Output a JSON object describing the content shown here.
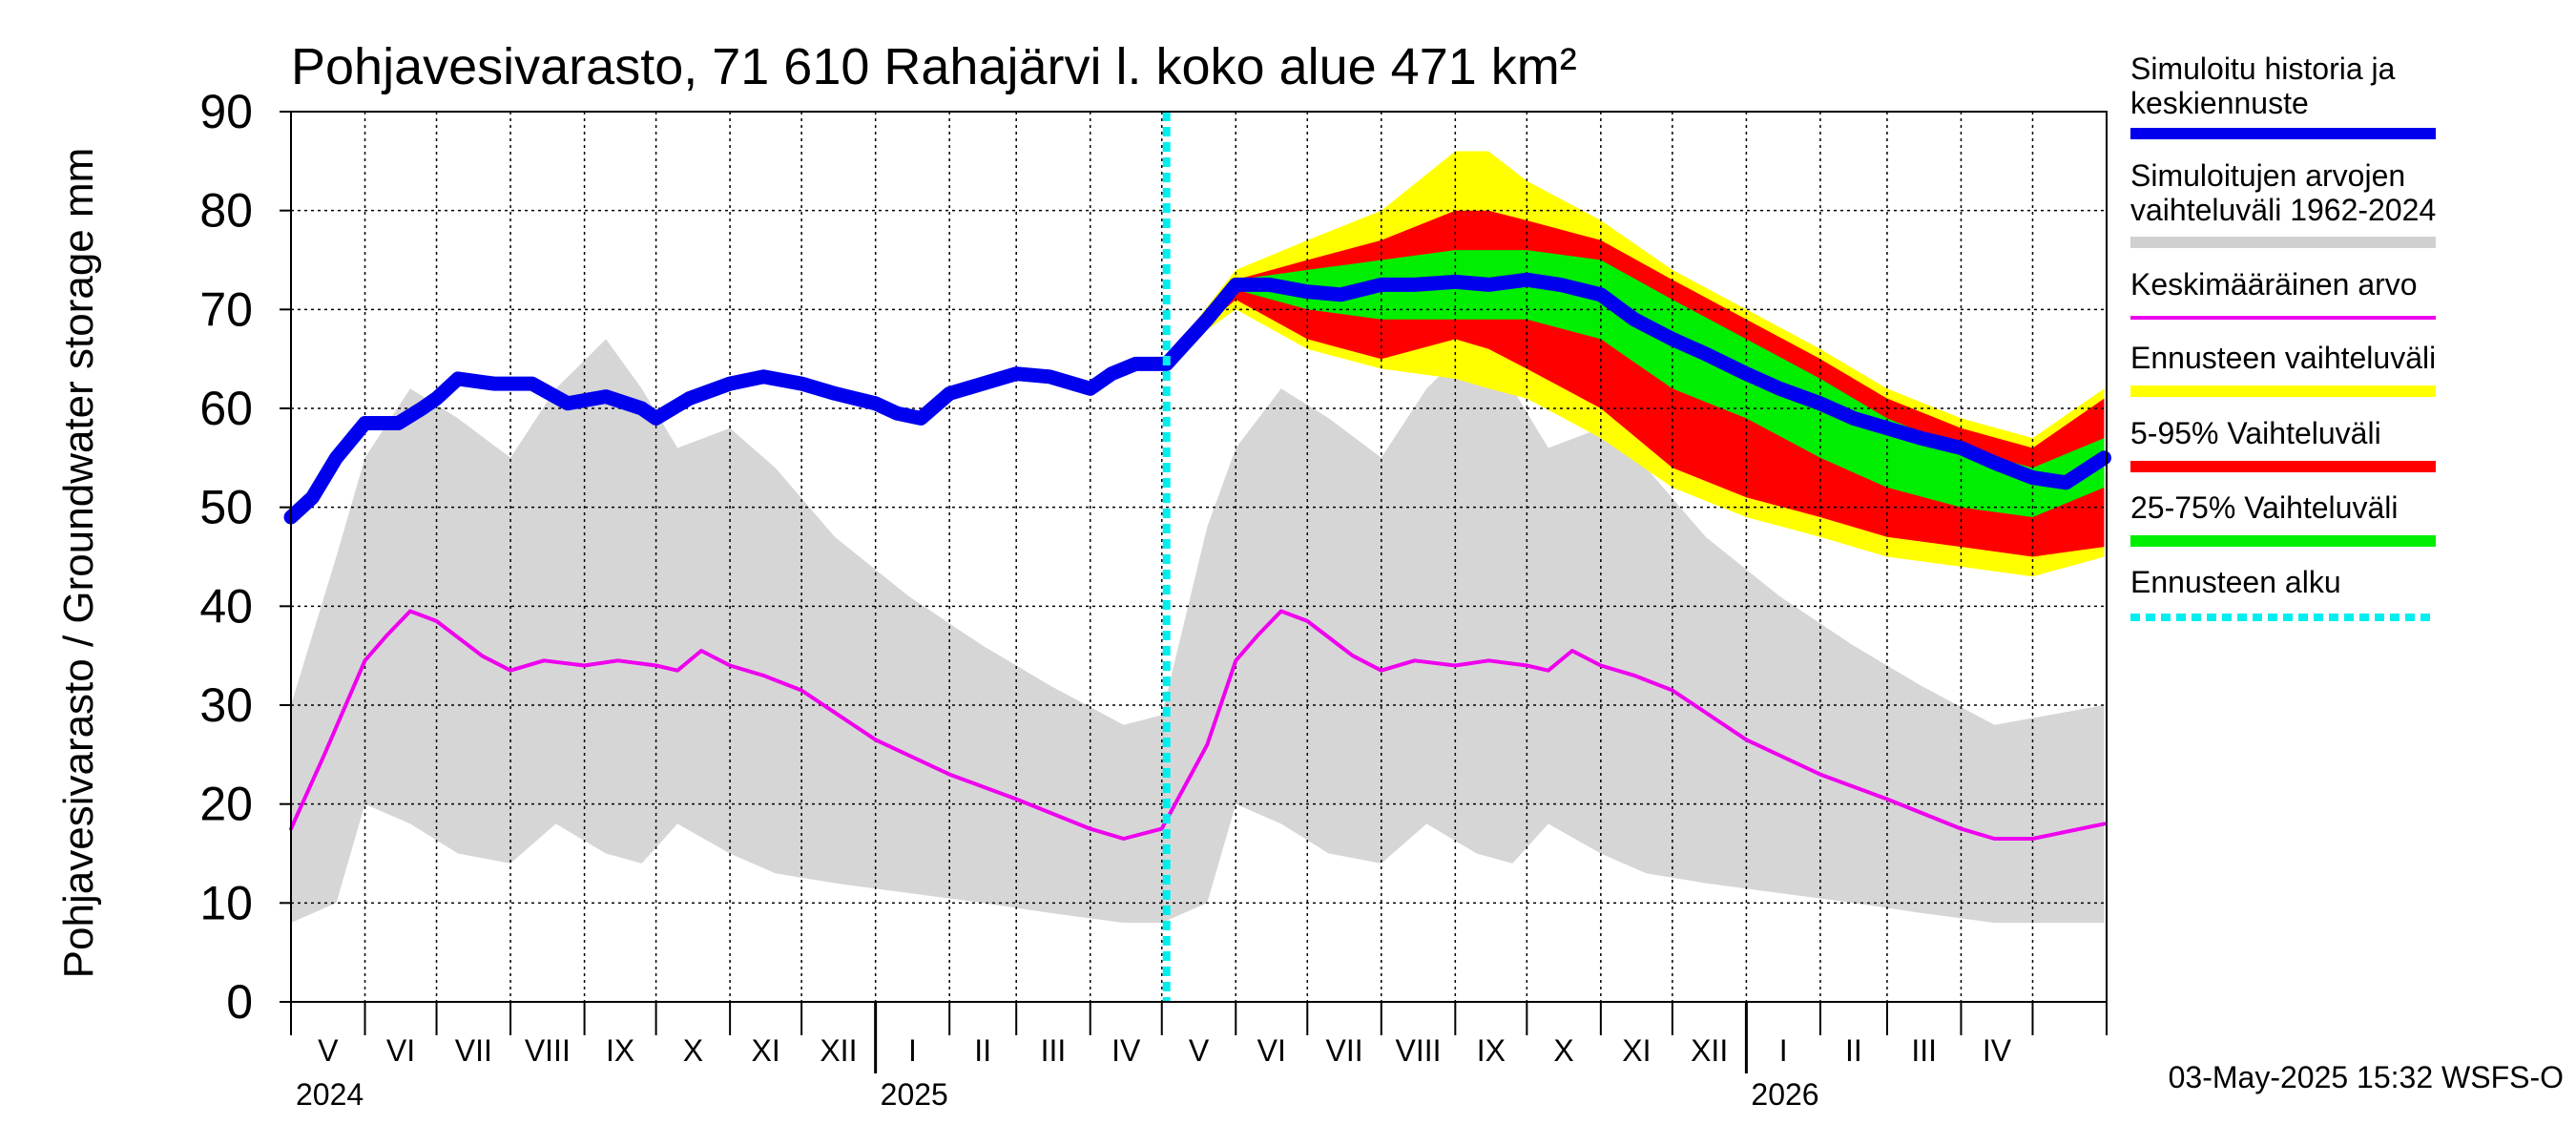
{
  "chart_data": {
    "type": "area",
    "title": "Pohjavesivarasto, 71 610 Rahajärvi l. koko alue 471 km²",
    "ylabel": "Pohjavesivarasto / Groundwater storage   mm",
    "ylim": [
      0,
      90
    ],
    "yticks": [
      0,
      10,
      20,
      30,
      40,
      50,
      60,
      70,
      80,
      90
    ],
    "grid": true,
    "x_start": "2024-05-01",
    "x_end": "2026-05-31",
    "forecast_start": "2025-05-03",
    "months": [
      "V",
      "VI",
      "VII",
      "VIII",
      "IX",
      "X",
      "XI",
      "XII",
      "I",
      "II",
      "III",
      "IV",
      "V",
      "VI",
      "VII",
      "VIII",
      "IX",
      "X",
      "XI",
      "XII",
      "I",
      "II",
      "III",
      "IV"
    ],
    "years": [
      "2024",
      "2025",
      "2026"
    ],
    "legend": [
      {
        "label": "Simuloitu historia ja keskiennuste",
        "color": "#0000ee",
        "style": "thick"
      },
      {
        "label": "Simuloitujen arvojen vaihteluväli 1962-2024",
        "color": "#d0d0d0",
        "style": "thick"
      },
      {
        "label": "Keskimääräinen arvo",
        "color": "#ee00ee",
        "style": "thin"
      },
      {
        "label": "Ennusteen vaihteluväli",
        "color": "#ffff00",
        "style": "thick"
      },
      {
        "label": "5-95% Vaihteluväli",
        "color": "#ff0000",
        "style": "thick"
      },
      {
        "label": "25-75% Vaihteluväli",
        "color": "#00ee00",
        "style": "thick"
      },
      {
        "label": "Ennusteen alku",
        "color": "#00eeee",
        "style": "dashed"
      }
    ],
    "series": [
      {
        "name": "Simuloitu historia ja keskiennuste",
        "x": [
          "2024-05-01",
          "2024-05-10",
          "2024-05-20",
          "2024-06-01",
          "2024-06-15",
          "2024-06-25",
          "2024-07-01",
          "2024-07-10",
          "2024-07-25",
          "2024-08-10",
          "2024-08-25",
          "2024-09-10",
          "2024-09-25",
          "2024-10-01",
          "2024-10-15",
          "2024-11-01",
          "2024-11-15",
          "2024-12-01",
          "2024-12-15",
          "2025-01-01",
          "2025-01-10",
          "2025-01-20",
          "2025-02-01",
          "2025-02-15",
          "2025-03-01",
          "2025-03-15",
          "2025-04-01",
          "2025-04-10",
          "2025-04-20",
          "2025-05-03",
          "2025-05-20",
          "2025-06-01",
          "2025-06-15",
          "2025-07-01",
          "2025-07-15",
          "2025-08-01",
          "2025-08-15",
          "2025-09-01",
          "2025-09-15",
          "2025-10-01",
          "2025-10-15",
          "2025-11-01",
          "2025-11-15",
          "2025-12-01",
          "2025-12-15",
          "2026-01-01",
          "2026-01-15",
          "2026-02-01",
          "2026-02-15",
          "2026-03-01",
          "2026-03-15",
          "2026-04-01",
          "2026-04-15",
          "2026-05-01",
          "2026-05-15",
          "2026-05-31"
        ],
        "values": [
          49,
          51,
          55,
          58.5,
          58.5,
          60,
          61,
          63,
          62.5,
          62.5,
          60.5,
          61.2,
          60,
          59,
          61,
          62.5,
          63.2,
          62.5,
          61.5,
          60.5,
          59.5,
          59,
          61.5,
          62.5,
          63.5,
          63.2,
          62,
          63.5,
          64.5,
          64.5,
          69,
          72.5,
          72.5,
          71.8,
          71.5,
          72.5,
          72.5,
          72.8,
          72.5,
          73,
          72.5,
          71.5,
          69,
          67,
          65.5,
          63.5,
          62,
          60.5,
          59,
          58,
          57,
          56,
          54.5,
          53,
          52.5,
          55
        ]
      },
      {
        "name": "Keskimääräinen arvo",
        "x": [
          "2024-05-01",
          "2024-05-15",
          "2024-06-01",
          "2024-06-10",
          "2024-06-20",
          "2024-07-01",
          "2024-07-20",
          "2024-08-01",
          "2024-08-15",
          "2024-09-01",
          "2024-09-15",
          "2024-10-01",
          "2024-10-10",
          "2024-10-20",
          "2024-11-01",
          "2024-11-15",
          "2024-12-01",
          "2025-01-01",
          "2025-02-01",
          "2025-03-01",
          "2025-04-01",
          "2025-04-15",
          "2025-05-01",
          "2025-05-20",
          "2025-06-01",
          "2025-06-10",
          "2025-06-20",
          "2025-07-01",
          "2025-07-20",
          "2025-08-01",
          "2025-08-15",
          "2025-09-01",
          "2025-09-15",
          "2025-10-01",
          "2025-10-10",
          "2025-10-20",
          "2025-11-01",
          "2025-11-15",
          "2025-12-01",
          "2026-01-01",
          "2026-02-01",
          "2026-03-01",
          "2026-04-01",
          "2026-04-15",
          "2026-05-01",
          "2026-05-31"
        ],
        "values": [
          17.5,
          25,
          34.5,
          37,
          39.5,
          38.5,
          35,
          33.5,
          34.5,
          34,
          34.5,
          34,
          33.5,
          35.5,
          34,
          33,
          31.5,
          26.5,
          23,
          20.5,
          17.5,
          16.5,
          17.5,
          26,
          34.5,
          37,
          39.5,
          38.5,
          35,
          33.5,
          34.5,
          34,
          34.5,
          34,
          33.5,
          35.5,
          34,
          33,
          31.5,
          26.5,
          23,
          20.5,
          17.5,
          16.5,
          16.5,
          18
        ]
      }
    ],
    "bands": [
      {
        "name": "Simuloitujen arvojen vaihteluväli 1962-2024",
        "x": [
          "2024-05-01",
          "2024-05-20",
          "2024-06-01",
          "2024-06-20",
          "2024-07-10",
          "2024-08-01",
          "2024-08-20",
          "2024-09-10",
          "2024-09-25",
          "2024-10-10",
          "2024-11-01",
          "2024-11-20",
          "2024-12-15",
          "2025-01-15",
          "2025-02-15",
          "2025-03-15",
          "2025-04-15",
          "2025-05-01",
          "2025-05-20",
          "2025-06-01",
          "2025-06-20",
          "2025-07-10",
          "2025-08-01",
          "2025-08-20",
          "2025-09-10",
          "2025-09-25",
          "2025-10-10",
          "2025-11-01",
          "2025-11-20",
          "2025-12-15",
          "2026-01-15",
          "2026-02-15",
          "2026-03-15",
          "2026-04-15",
          "2026-05-31"
        ],
        "upper": [
          30,
          45,
          55,
          62,
          59,
          55,
          62,
          67,
          62,
          56,
          58,
          54,
          47,
          41,
          36,
          32,
          28,
          29,
          48,
          56,
          62,
          59,
          55,
          62,
          67,
          62,
          56,
          58,
          54,
          47,
          41,
          36,
          32,
          28,
          30
        ],
        "lower": [
          8,
          10,
          20,
          18,
          15,
          14,
          18,
          15,
          14,
          18,
          15,
          13,
          12,
          11,
          10,
          9,
          8,
          8,
          10,
          20,
          18,
          15,
          14,
          18,
          15,
          14,
          18,
          15,
          13,
          12,
          11,
          10,
          9,
          8,
          8
        ]
      },
      {
        "name": "Ennusteen vaihteluväli",
        "x": [
          "2025-05-03",
          "2025-06-01",
          "2025-07-01",
          "2025-08-01",
          "2025-09-01",
          "2025-09-15",
          "2025-10-01",
          "2025-11-01",
          "2025-12-01",
          "2026-01-01",
          "2026-02-01",
          "2026-03-01",
          "2026-04-01",
          "2026-05-01",
          "2026-05-31"
        ],
        "upper": [
          65,
          74,
          77,
          80,
          86,
          86,
          83,
          79,
          74,
          70,
          66,
          62,
          59,
          57,
          62
        ],
        "lower": [
          65,
          70,
          66,
          64,
          63,
          62,
          61,
          57,
          52,
          49,
          47,
          45,
          44,
          43,
          45
        ]
      },
      {
        "name": "5-95% Vaihteluväli",
        "x": [
          "2025-05-03",
          "2025-06-01",
          "2025-07-01",
          "2025-08-01",
          "2025-09-01",
          "2025-09-15",
          "2025-10-01",
          "2025-11-01",
          "2025-12-01",
          "2026-01-01",
          "2026-02-01",
          "2026-03-01",
          "2026-04-01",
          "2026-05-01",
          "2026-05-31"
        ],
        "upper": [
          65,
          73,
          75,
          77,
          80,
          80,
          79,
          77,
          73,
          69,
          65,
          61,
          58,
          56,
          61
        ],
        "lower": [
          65,
          71,
          67,
          65,
          67,
          66,
          64,
          60,
          54,
          51,
          49,
          47,
          46,
          45,
          46
        ]
      },
      {
        "name": "25-75% Vaihteluväli",
        "x": [
          "2025-05-03",
          "2025-06-01",
          "2025-07-01",
          "2025-08-01",
          "2025-09-01",
          "2025-09-15",
          "2025-10-01",
          "2025-11-01",
          "2025-12-01",
          "2026-01-01",
          "2026-02-01",
          "2026-03-01",
          "2026-04-01",
          "2026-05-01",
          "2026-05-31"
        ],
        "upper": [
          65,
          73,
          74,
          75,
          76,
          76,
          76,
          75,
          71,
          67,
          63,
          59,
          56,
          54,
          57
        ],
        "lower": [
          65,
          72,
          70,
          69,
          69,
          69,
          69,
          67,
          62,
          59,
          55,
          52,
          50,
          49,
          52
        ]
      }
    ]
  },
  "footer": {
    "timestamp": "03-May-2025 15:32 WSFS-O"
  }
}
